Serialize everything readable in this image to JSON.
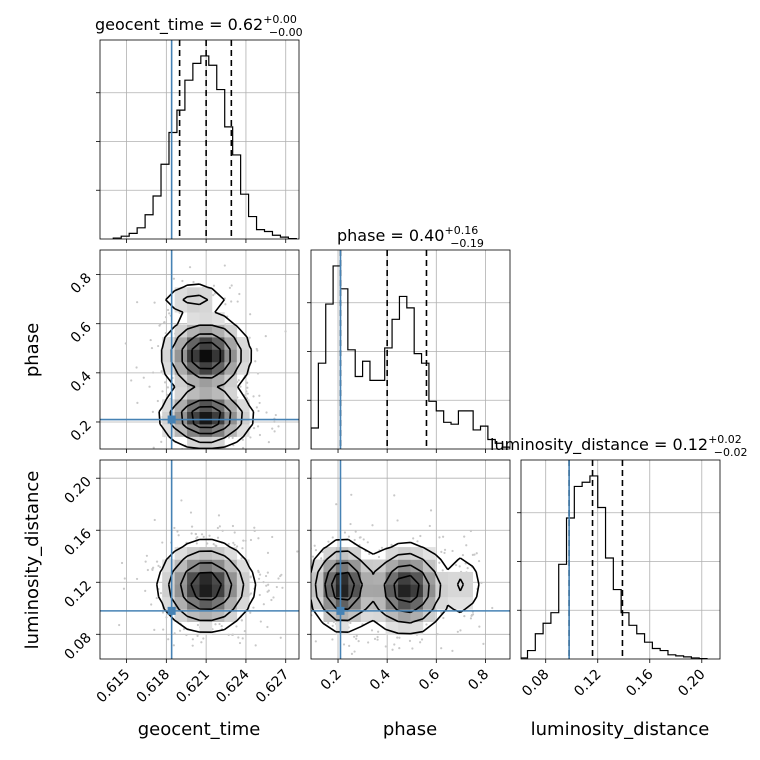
{
  "chart_data": {
    "type": "corner",
    "parameters": [
      "geocent_time",
      "phase",
      "luminosity_distance"
    ],
    "truths": {
      "geocent_time": 0.6184,
      "phase": 0.21,
      "luminosity_distance": 0.098
    },
    "truth_color": "#4682b4",
    "titles": [
      {
        "param": "geocent_time",
        "text": "geocent_time = 0.62",
        "plus": "+0.00",
        "minus": "−0.00"
      },
      {
        "param": "phase",
        "text": "phase = 0.40",
        "plus": "+0.16",
        "minus": "−0.19"
      },
      {
        "param": "luminosity_distance",
        "text": "luminosity_distance = 0.12",
        "plus": "+0.02",
        "minus": "−0.02"
      }
    ],
    "ranges": {
      "geocent_time": [
        0.613,
        0.628
      ],
      "phase": [
        0.09,
        0.9
      ],
      "luminosity_distance": [
        0.061,
        0.214
      ]
    },
    "tick_labels": {
      "geocent_time": [
        "0.615",
        "0.618",
        "0.621",
        "0.624",
        "0.627"
      ],
      "phase": [
        "0.2",
        "0.4",
        "0.6",
        "0.8"
      ],
      "luminosity_distance": [
        "0.08",
        "0.12",
        "0.16",
        "0.20"
      ]
    },
    "tick_values": {
      "geocent_time": [
        0.615,
        0.618,
        0.621,
        0.624,
        0.627
      ],
      "phase": [
        0.2,
        0.4,
        0.6,
        0.8
      ],
      "luminosity_distance": [
        0.08,
        0.12,
        0.16,
        0.2
      ]
    },
    "quantiles": {
      "geocent_time": [
        0.619,
        0.621,
        0.6229
      ],
      "phase": [
        0.21,
        0.4,
        0.56
      ],
      "luminosity_distance": [
        0.098,
        0.116,
        0.139
      ]
    },
    "histograms": {
      "geocent_time": {
        "edges": [
          0.614,
          0.6146,
          0.6152,
          0.6158,
          0.6164,
          0.617,
          0.6176,
          0.6182,
          0.6188,
          0.6194,
          0.62,
          0.6206,
          0.6212,
          0.6218,
          0.6224,
          0.623,
          0.6236,
          0.6242,
          0.6248,
          0.6254,
          0.626,
          0.6266,
          0.6272,
          0.6278
        ],
        "counts": [
          0.005,
          0.015,
          0.03,
          0.06,
          0.13,
          0.23,
          0.4,
          0.57,
          0.69,
          0.85,
          0.94,
          0.98,
          0.93,
          0.8,
          0.6,
          0.45,
          0.24,
          0.12,
          0.05,
          0.04,
          0.02,
          0.01,
          0.002
        ]
      },
      "phase": {
        "edges": [
          0.09,
          0.12,
          0.15,
          0.18,
          0.21,
          0.24,
          0.27,
          0.3,
          0.33,
          0.36,
          0.39,
          0.42,
          0.45,
          0.48,
          0.51,
          0.54,
          0.57,
          0.6,
          0.63,
          0.66,
          0.69,
          0.72,
          0.75,
          0.78,
          0.81,
          0.84,
          0.87,
          0.9
        ],
        "counts": [
          0.11,
          0.45,
          0.76,
          0.96,
          0.84,
          0.52,
          0.38,
          0.46,
          0.36,
          0.36,
          0.53,
          0.68,
          0.8,
          0.74,
          0.5,
          0.45,
          0.25,
          0.2,
          0.14,
          0.13,
          0.2,
          0.2,
          0.1,
          0.12,
          0.05,
          0.03,
          0.01
        ]
      },
      "luminosity_distance": {
        "edges": [
          0.06,
          0.066,
          0.072,
          0.078,
          0.084,
          0.09,
          0.096,
          0.102,
          0.108,
          0.114,
          0.12,
          0.126,
          0.132,
          0.138,
          0.144,
          0.15,
          0.156,
          0.162,
          0.168,
          0.174,
          0.18,
          0.186,
          0.192,
          0.198,
          0.204
        ],
        "counts": [
          0.005,
          0.04,
          0.12,
          0.17,
          0.22,
          0.45,
          0.67,
          0.82,
          0.84,
          0.87,
          0.72,
          0.48,
          0.33,
          0.22,
          0.16,
          0.12,
          0.08,
          0.05,
          0.04,
          0.02,
          0.015,
          0.01,
          0.005,
          0.002
        ]
      }
    },
    "pair_densities": [
      {
        "x": "geocent_time",
        "y": "phase",
        "modes": [
          {
            "cx": 0.621,
            "cy": 0.47,
            "sx": 0.00135,
            "sy": 0.065,
            "w": 1.0
          },
          {
            "cx": 0.621,
            "cy": 0.22,
            "sx": 0.0014,
            "sy": 0.05,
            "w": 1.0
          },
          {
            "cx": 0.6202,
            "cy": 0.7,
            "sx": 0.0012,
            "sy": 0.03,
            "w": 0.22
          }
        ],
        "contour_levels": [
          0.75,
          0.45,
          0.18,
          0.05
        ]
      },
      {
        "x": "geocent_time",
        "y": "luminosity_distance",
        "modes": [
          {
            "cx": 0.621,
            "cy": 0.117,
            "sx": 0.00145,
            "sy": 0.014,
            "w": 1.0
          }
        ],
        "contour_levels": [
          0.75,
          0.45,
          0.18,
          0.05
        ]
      },
      {
        "x": "phase",
        "y": "luminosity_distance",
        "modes": [
          {
            "cx": 0.22,
            "cy": 0.117,
            "sx": 0.055,
            "sy": 0.014,
            "w": 1.0
          },
          {
            "cx": 0.48,
            "cy": 0.115,
            "sx": 0.07,
            "sy": 0.014,
            "w": 0.95
          },
          {
            "cx": 0.71,
            "cy": 0.118,
            "sx": 0.03,
            "sy": 0.012,
            "w": 0.2
          }
        ],
        "contour_levels": [
          0.75,
          0.45,
          0.18,
          0.05
        ]
      }
    ],
    "axis_labels": {
      "x": [
        "geocent_time",
        "phase",
        "luminosity_distance"
      ],
      "y": [
        "phase",
        "luminosity_distance"
      ]
    },
    "grid": true
  }
}
